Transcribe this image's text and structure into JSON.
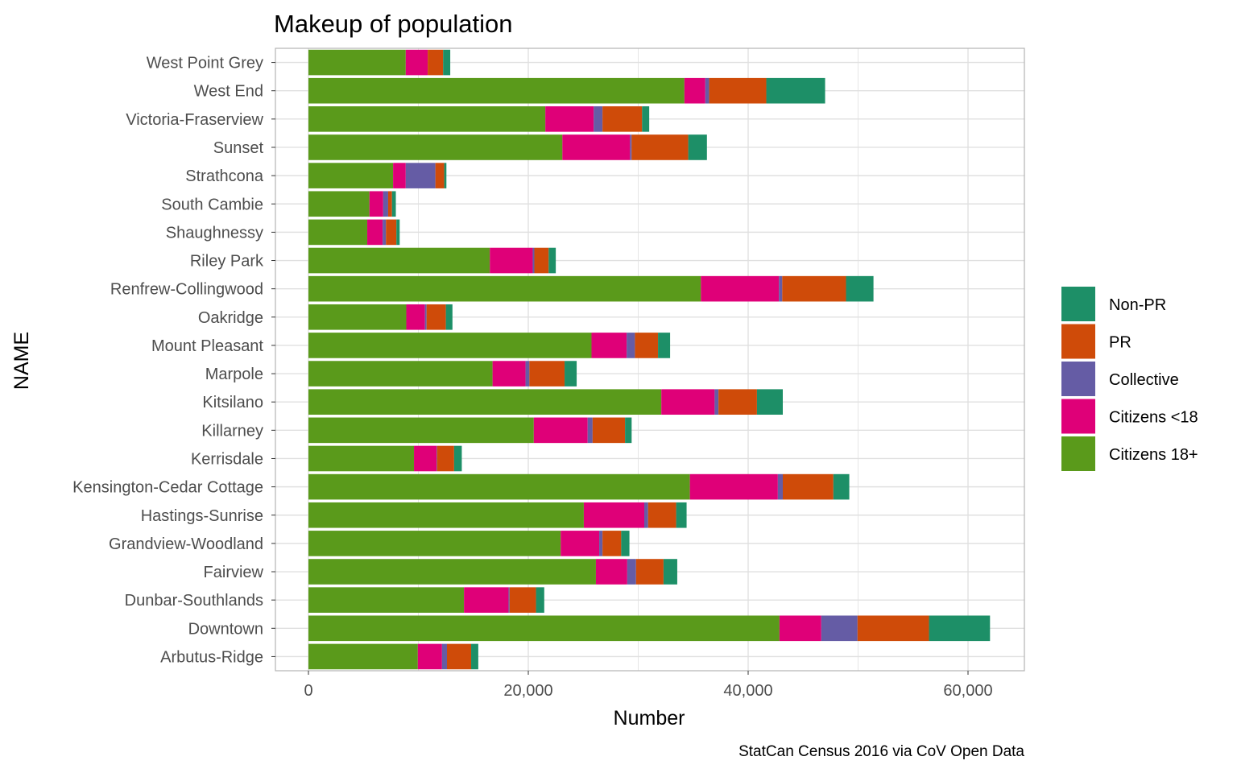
{
  "chart_data": {
    "type": "bar",
    "orientation": "horizontal",
    "stacked": true,
    "title": "Makeup of population",
    "xlabel": "Number",
    "ylabel": "NAME",
    "caption": "StatCan Census 2016 via CoV Open Data",
    "xlim": [
      -3000,
      65000
    ],
    "xticks": [
      0,
      20000,
      40000,
      60000
    ],
    "xtick_labels": [
      "0",
      "20,000",
      "40,000",
      "60,000"
    ],
    "grid": true,
    "legend_position": "right",
    "categories": [
      "Arbutus-Ridge",
      "Downtown",
      "Dunbar-Southlands",
      "Fairview",
      "Grandview-Woodland",
      "Hastings-Sunrise",
      "Kensington-Cedar Cottage",
      "Kerrisdale",
      "Killarney",
      "Kitsilano",
      "Marpole",
      "Mount Pleasant",
      "Oakridge",
      "Renfrew-Collingwood",
      "Riley Park",
      "Shaughnessy",
      "South Cambie",
      "Strathcona",
      "Sunset",
      "Victoria-Fraserview",
      "West End",
      "West Point Grey"
    ],
    "series": [
      {
        "name": "Citizens 18+",
        "color": "#5a9a1b",
        "values": [
          9950,
          42850,
          14150,
          26150,
          22950,
          25050,
          34700,
          9600,
          20500,
          32100,
          16750,
          25750,
          8900,
          35700,
          16500,
          5350,
          5550,
          7700,
          23100,
          21550,
          34200,
          8850
        ]
      },
      {
        "name": "Citizens <18",
        "color": "#df0078",
        "values": [
          2200,
          3800,
          4050,
          2850,
          3500,
          5500,
          8000,
          2050,
          4900,
          4850,
          3000,
          3200,
          1700,
          7100,
          3900,
          1400,
          1250,
          1150,
          6150,
          4400,
          1900,
          2000
        ]
      },
      {
        "name": "Collective",
        "color": "#655ca5",
        "values": [
          450,
          3300,
          100,
          800,
          300,
          350,
          450,
          50,
          450,
          350,
          350,
          750,
          150,
          300,
          150,
          300,
          450,
          2700,
          150,
          800,
          350,
          0
        ]
      },
      {
        "name": "PR",
        "color": "#cf4b09",
        "values": [
          2200,
          6500,
          2400,
          2500,
          1700,
          2550,
          4600,
          1550,
          2950,
          3500,
          3200,
          2100,
          1750,
          5800,
          1300,
          950,
          350,
          800,
          5150,
          3600,
          5200,
          1400
        ]
      },
      {
        "name": "Non-PR",
        "color": "#1d8f67",
        "values": [
          650,
          5550,
          750,
          1250,
          750,
          950,
          1450,
          700,
          600,
          2350,
          1100,
          1100,
          600,
          2500,
          650,
          300,
          350,
          200,
          1700,
          650,
          5350,
          650
        ]
      }
    ],
    "legend_order": [
      "Non-PR",
      "PR",
      "Collective",
      "Citizens <18",
      "Citizens 18+"
    ]
  }
}
